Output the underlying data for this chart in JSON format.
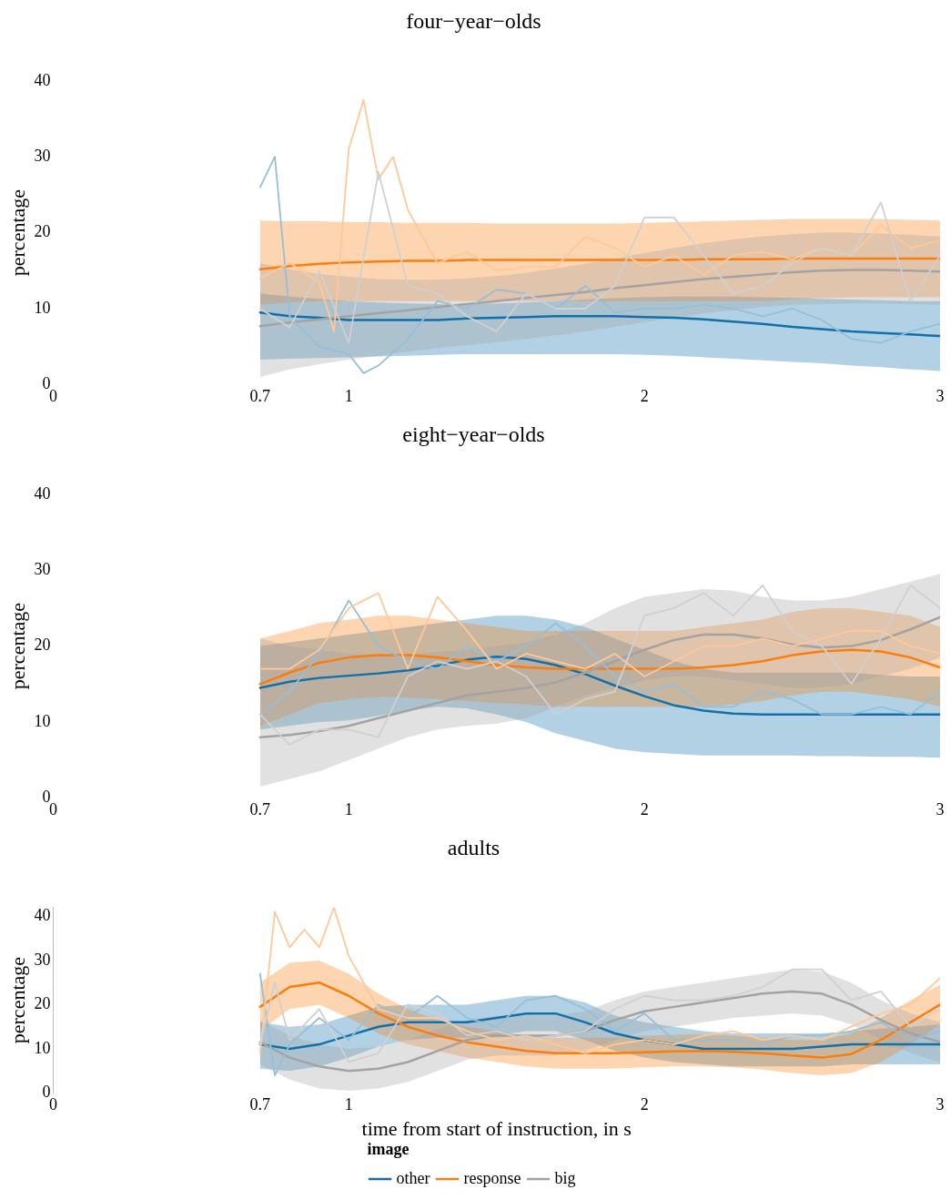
{
  "chart_data": [
    {
      "type": "line",
      "title": "four−year−olds",
      "ylabel": "percentage",
      "xlim": [
        0,
        3
      ],
      "xticks": [
        0,
        0.7,
        1,
        2,
        3
      ],
      "ylim": [
        0,
        40
      ],
      "yticks": [
        0,
        10,
        20,
        30,
        40
      ],
      "x": [
        0.7,
        0.8,
        0.9,
        1.0,
        1.1,
        1.2,
        1.3,
        1.4,
        1.5,
        1.6,
        1.7,
        1.8,
        1.9,
        2.0,
        2.1,
        2.2,
        2.3,
        2.4,
        2.5,
        2.6,
        2.7,
        2.8,
        2.9,
        3.0
      ],
      "series": [
        {
          "color": "#95bfd9",
          "x": [
            0.7,
            0.75,
            0.8,
            0.9,
            1.0,
            1.05,
            1.1,
            1.2,
            1.3,
            1.4,
            1.5,
            1.6,
            1.7,
            1.8,
            1.9,
            2.0,
            2.1,
            2.2,
            2.3,
            2.4,
            2.5,
            2.6,
            2.7,
            2.8,
            2.9,
            3.0
          ],
          "values": [
            26,
            30,
            9,
            5,
            4,
            1.5,
            2.5,
            6,
            11,
            10,
            12.5,
            12,
            10,
            13,
            9.5,
            10,
            10,
            10.5,
            10,
            9,
            10,
            8.5,
            6,
            5.5,
            7,
            8
          ]
        },
        {
          "color": "#ffc896",
          "x": [
            0.7,
            0.8,
            0.9,
            0.95,
            1.0,
            1.05,
            1.1,
            1.15,
            1.2,
            1.3,
            1.4,
            1.5,
            1.6,
            1.7,
            1.8,
            1.9,
            2.0,
            2.1,
            2.2,
            2.3,
            2.4,
            2.5,
            2.6,
            2.7,
            2.8,
            2.9,
            3.0
          ],
          "values": [
            14,
            16,
            13.5,
            7,
            31,
            37.5,
            27,
            30,
            23,
            16,
            17.5,
            15,
            15.5,
            15.5,
            19.5,
            18,
            15.5,
            17,
            14.5,
            17,
            17.5,
            16.5,
            18,
            17,
            21,
            18,
            19
          ]
        },
        {
          "color": "#d0d0d0",
          "values": [
            10,
            7.5,
            15,
            5.5,
            28,
            13,
            12,
            9,
            7,
            12,
            10,
            10,
            13,
            22,
            22,
            17,
            12,
            13,
            16,
            18,
            17,
            24,
            11,
            17
          ]
        },
        {
          "color": "#1170aa",
          "values": [
            9.5,
            9,
            8.8,
            8.5,
            8.5,
            8.5,
            8.5,
            8.7,
            8.8,
            8.9,
            9,
            9,
            9,
            8.9,
            8.8,
            8.6,
            8.3,
            8,
            7.6,
            7.3,
            7,
            6.8,
            6.6,
            6.4
          ],
          "lower": [
            3.3,
            3.4,
            3.5,
            3.6,
            3.7,
            3.8,
            3.9,
            4,
            4,
            4,
            4,
            4,
            4,
            3.9,
            3.8,
            3.6,
            3.4,
            3.2,
            3,
            2.8,
            2.5,
            2.3,
            2,
            1.8
          ],
          "upper": [
            12,
            11.6,
            11.3,
            11,
            10.8,
            10.7,
            10.6,
            10.6,
            10.7,
            10.8,
            11,
            11.2,
            11.4,
            11.5,
            11.6,
            11.6,
            11.6,
            11.5,
            11.4,
            11.3,
            11.2,
            11.1,
            11,
            11
          ]
        },
        {
          "color": "#fc7d0b",
          "values": [
            15.2,
            15.6,
            15.9,
            16.1,
            16.2,
            16.3,
            16.3,
            16.4,
            16.4,
            16.4,
            16.4,
            16.4,
            16.4,
            16.4,
            16.4,
            16.5,
            16.5,
            16.5,
            16.6,
            16.6,
            16.6,
            16.6,
            16.6,
            16.6
          ],
          "lower": [
            10.5,
            10.8,
            11,
            11,
            11,
            11,
            11,
            11,
            11,
            11,
            11,
            11,
            11,
            11,
            11,
            11,
            11,
            11,
            11.2,
            11.4,
            11.5,
            11.5,
            11.5,
            11.5
          ],
          "upper": [
            21.6,
            21.5,
            21.5,
            21.4,
            21.4,
            21.3,
            21.3,
            21.3,
            21.2,
            21.2,
            21.2,
            21.2,
            21.2,
            21.3,
            21.4,
            21.5,
            21.6,
            21.7,
            21.8,
            21.8,
            21.8,
            21.8,
            21.7,
            21.6
          ]
        },
        {
          "color": "#a3a3a3",
          "values": [
            7.7,
            8.2,
            8.6,
            9,
            9.4,
            9.8,
            10.2,
            10.6,
            11,
            11.4,
            11.8,
            12.2,
            12.7,
            13.1,
            13.5,
            13.9,
            14.2,
            14.5,
            14.8,
            15,
            15.1,
            15.1,
            15,
            14.9
          ],
          "lower": [
            1,
            2,
            2.7,
            3.3,
            3.8,
            4.3,
            4.8,
            5.2,
            5.6,
            6,
            6.5,
            7,
            7.6,
            8.2,
            8.8,
            9.4,
            9.8,
            10.2,
            10.5,
            10.6,
            10.7,
            10.7,
            10.6,
            10.5
          ],
          "upper": [
            16,
            15.2,
            14.6,
            14.2,
            13.9,
            13.8,
            13.8,
            14,
            14.3,
            14.7,
            15.3,
            15.9,
            16.6,
            17.3,
            18,
            18.6,
            19.1,
            19.5,
            19.8,
            20,
            20,
            19.9,
            19.7,
            19.5
          ]
        }
      ]
    },
    {
      "type": "line",
      "title": "eight−year−olds",
      "ylabel": "percentage",
      "xlim": [
        0,
        3
      ],
      "xticks": [
        0,
        0.7,
        1,
        2,
        3
      ],
      "ylim": [
        0,
        40
      ],
      "yticks": [
        0,
        10,
        20,
        30,
        40
      ],
      "x": [
        0.7,
        0.8,
        0.9,
        1.0,
        1.1,
        1.2,
        1.3,
        1.4,
        1.5,
        1.6,
        1.7,
        1.8,
        1.9,
        2.0,
        2.1,
        2.2,
        2.3,
        2.4,
        2.5,
        2.6,
        2.7,
        2.8,
        2.9,
        3.0
      ],
      "series": [
        {
          "color": "#95bfd9",
          "values": [
            11,
            14,
            19,
            26,
            20,
            18,
            17,
            20,
            18,
            20,
            23,
            20,
            16,
            14,
            15,
            12,
            12,
            14,
            13,
            11,
            11,
            12,
            11,
            14
          ]
        },
        {
          "color": "#ffc896",
          "values": [
            17,
            17,
            19.5,
            25,
            27,
            17,
            26.5,
            22,
            17,
            19,
            18,
            17,
            19,
            16,
            18,
            20,
            20,
            21,
            20,
            21,
            22,
            22,
            20,
            19
          ]
        },
        {
          "color": "#d0d0d0",
          "values": [
            11,
            7,
            9,
            9,
            8,
            16,
            18,
            17,
            18,
            16,
            11,
            13,
            14,
            24,
            25,
            27,
            24,
            28,
            22,
            20,
            15,
            21,
            28,
            25
          ]
        },
        {
          "color": "#1170aa",
          "values": [
            14.5,
            15.3,
            15.8,
            16.1,
            16.4,
            16.8,
            17.4,
            18.2,
            18.6,
            18.3,
            17.5,
            16.3,
            14.8,
            13.4,
            12.2,
            11.5,
            11.1,
            11,
            11,
            11,
            11,
            11,
            11,
            11
          ],
          "lower": [
            9,
            9.5,
            10,
            10.2,
            10.8,
            11.5,
            12,
            11.8,
            11,
            10,
            8.5,
            7.5,
            6.5,
            6,
            5.8,
            5.6,
            5.6,
            5.6,
            5.6,
            5.5,
            5.5,
            5.4,
            5.4,
            5.3
          ],
          "upper": [
            20,
            20.5,
            21,
            21.5,
            22,
            22.5,
            23,
            23.5,
            24,
            24,
            23.5,
            22.5,
            21,
            19.5,
            18,
            17,
            16.5,
            16.5,
            16.5,
            16.5,
            16.5,
            16.2,
            16,
            16
          ]
        },
        {
          "color": "#fc7d0b",
          "values": [
            15,
            16.5,
            17.8,
            18.5,
            18.8,
            18.8,
            18.5,
            18,
            17.5,
            17.2,
            17,
            17,
            17,
            17,
            17,
            17.2,
            17.5,
            18,
            18.8,
            19.3,
            19.5,
            19.3,
            18.5,
            17.2
          ],
          "lower": [
            9.5,
            11,
            12.5,
            13,
            13.3,
            13.2,
            13,
            12.8,
            12.5,
            12.3,
            12,
            12,
            12,
            12,
            12,
            12,
            12.3,
            12.8,
            13.5,
            14,
            14,
            13.5,
            13,
            12
          ],
          "upper": [
            21,
            22,
            23,
            23.5,
            24,
            24,
            23.5,
            23,
            22.5,
            22,
            22,
            22,
            22,
            22,
            22,
            22.5,
            23,
            23.5,
            24.5,
            25,
            25,
            24.5,
            24,
            22.5
          ]
        },
        {
          "color": "#a3a3a3",
          "values": [
            8,
            8.3,
            8.8,
            9.5,
            10.5,
            11.5,
            12.5,
            13.5,
            14,
            14.5,
            15.2,
            16.5,
            18,
            19.5,
            20.8,
            21.5,
            21.5,
            21,
            20.2,
            19.8,
            20,
            20.8,
            22.2,
            23.8
          ],
          "lower": [
            1.5,
            2.5,
            3.5,
            5,
            6.5,
            8,
            9,
            9.5,
            9.8,
            10.5,
            12,
            13.5,
            14.5,
            15.5,
            16,
            16,
            15.5,
            15,
            14.5,
            14.5,
            15,
            16,
            17,
            18.5
          ],
          "upper": [
            21,
            20,
            19.5,
            19,
            18.8,
            19,
            19.2,
            19.5,
            20,
            20.5,
            21.5,
            23,
            25,
            26.5,
            27,
            27.5,
            27.3,
            26.5,
            26,
            26,
            26.5,
            27.5,
            28.5,
            29.5
          ]
        }
      ]
    },
    {
      "type": "line",
      "title": "adults",
      "ylabel": "percentage",
      "xlabel": "time from start of instruction, in s",
      "legend": "bottom",
      "legend_title": "image",
      "xlim": [
        0,
        3
      ],
      "xticks": [
        0,
        0.7,
        1,
        2,
        3
      ],
      "ylim": [
        0,
        42
      ],
      "yticks": [
        0,
        10,
        20,
        30,
        40
      ],
      "x": [
        0.7,
        0.8,
        0.9,
        1.0,
        1.1,
        1.2,
        1.3,
        1.4,
        1.5,
        1.6,
        1.7,
        1.8,
        1.9,
        2.0,
        2.1,
        2.2,
        2.3,
        2.4,
        2.5,
        2.6,
        2.7,
        2.8,
        2.9,
        3.0
      ],
      "series": [
        {
          "color": "#95bfd9",
          "x": [
            0.7,
            0.75,
            0.8,
            0.9,
            1.0,
            1.1,
            1.2,
            1.3,
            1.4,
            1.5,
            1.6,
            1.7,
            1.8,
            1.9,
            2.0,
            2.1,
            2.2,
            2.3,
            2.4,
            2.5,
            2.6,
            2.7,
            2.8,
            2.9,
            3.0
          ],
          "values": [
            27,
            4,
            11,
            17,
            12,
            20,
            17,
            22,
            17,
            15,
            21,
            22,
            19,
            14,
            18,
            12,
            12,
            12,
            11,
            13,
            13,
            14,
            16,
            12,
            14
          ]
        },
        {
          "color": "#ffc896",
          "x": [
            0.7,
            0.75,
            0.8,
            0.85,
            0.9,
            0.95,
            1.0,
            1.1,
            1.2,
            1.3,
            1.4,
            1.5,
            1.6,
            1.7,
            1.8,
            1.9,
            2.0,
            2.1,
            2.2,
            2.3,
            2.4,
            2.5,
            2.6,
            2.7,
            2.8,
            2.9,
            3.0
          ],
          "values": [
            9,
            41,
            33,
            37,
            33,
            42,
            31,
            19,
            17,
            17,
            14,
            12,
            13,
            11,
            9,
            11,
            12,
            11,
            13,
            14,
            12,
            13,
            12,
            15,
            18,
            20,
            26
          ]
        },
        {
          "color": "#d0d0d0",
          "x": [
            0.7,
            0.75,
            0.8,
            0.9,
            1.0,
            1.1,
            1.2,
            1.3,
            1.4,
            1.5,
            1.6,
            1.7,
            1.8,
            1.9,
            2.0,
            2.1,
            2.2,
            2.3,
            2.4,
            2.5,
            2.6,
            2.7,
            2.8,
            2.9,
            3.0
          ],
          "values": [
            11,
            25,
            12,
            19,
            7,
            9,
            20,
            18,
            13,
            14,
            12,
            13,
            14,
            19,
            22,
            21,
            21,
            22,
            24,
            28,
            28,
            21,
            23,
            15,
            19
          ]
        },
        {
          "name": "other",
          "color": "#1170aa",
          "values": [
            11,
            10,
            11,
            13,
            15,
            16,
            16,
            16,
            17,
            18,
            18,
            16,
            13.5,
            12,
            11,
            10,
            10,
            10,
            10,
            10.5,
            11,
            11,
            11,
            11
          ],
          "lower": [
            5.5,
            5,
            6,
            8,
            10.5,
            12,
            12.5,
            12.5,
            13,
            14,
            14,
            12,
            9.5,
            8,
            7,
            6.5,
            6,
            6,
            6,
            6,
            6.5,
            6.5,
            6.5,
            6.5
          ],
          "upper": [
            16,
            15,
            15.5,
            17.5,
            19.5,
            20,
            20,
            20,
            21,
            22,
            22,
            20.5,
            17.5,
            16,
            15,
            14,
            13.5,
            13.5,
            13.5,
            13.5,
            14,
            14.5,
            15,
            15.5
          ]
        },
        {
          "name": "response",
          "color": "#fc7d0b",
          "values": [
            19.5,
            24,
            25,
            22,
            18,
            15,
            13,
            11.5,
            10.5,
            9.5,
            9,
            9,
            9,
            9.2,
            9.4,
            9.5,
            9.3,
            9,
            8.5,
            8,
            8.8,
            12,
            16,
            20
          ],
          "lower": [
            14,
            19,
            20,
            17,
            13.5,
            11,
            9.5,
            8,
            7,
            6,
            5.5,
            5.5,
            5.5,
            5.8,
            6,
            6,
            5.8,
            5.3,
            4.5,
            4,
            4.5,
            7,
            11,
            15.5
          ],
          "upper": [
            25,
            29.5,
            30,
            27,
            22.5,
            19,
            16.5,
            15,
            14,
            13,
            12.5,
            12.5,
            12.5,
            13,
            13.2,
            13.3,
            13,
            12.5,
            12,
            12,
            13.5,
            17,
            21,
            24.5
          ]
        },
        {
          "name": "big",
          "color": "#a3a3a3",
          "values": [
            11.5,
            8,
            6,
            5,
            5.5,
            7,
            9.5,
            12,
            13,
            13,
            13,
            14,
            16.5,
            18.5,
            19.5,
            20.5,
            21.5,
            22.5,
            23,
            22.5,
            20,
            16.5,
            13.5,
            11.5
          ],
          "lower": [
            6.5,
            3,
            1,
            0.5,
            1,
            2.5,
            5,
            7.5,
            8.5,
            8.5,
            8.5,
            9.5,
            12,
            14,
            15,
            16,
            17,
            17.5,
            18,
            17.5,
            15.5,
            12,
            9,
            7
          ],
          "upper": [
            16.5,
            13,
            11,
            10,
            10.5,
            12,
            14.5,
            16.5,
            17.5,
            17.5,
            17.5,
            18.5,
            21,
            23,
            24,
            25,
            26,
            27,
            28,
            27.5,
            25,
            21,
            18,
            16
          ]
        }
      ]
    }
  ]
}
